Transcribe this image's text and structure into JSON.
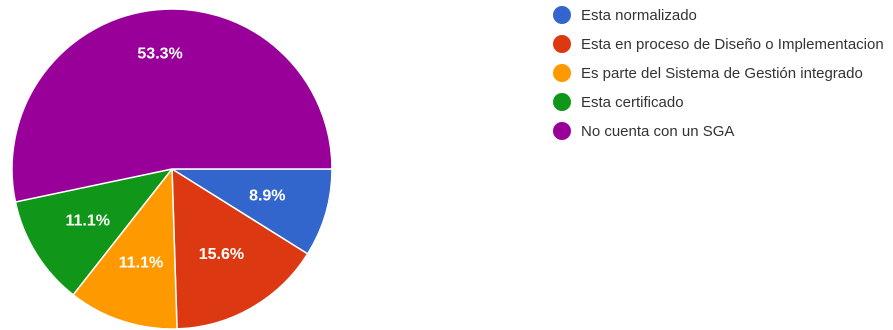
{
  "chart_data": {
    "type": "pie",
    "title": "",
    "series": [
      {
        "name": "Esta normalizado",
        "value": 8.9,
        "label": "8.9%",
        "color": "#3366cc"
      },
      {
        "name": "Esta en proceso de Diseño o Implementacion",
        "value": 15.6,
        "label": "15.6%",
        "color": "#dc3912"
      },
      {
        "name": "Es parte del Sistema de Gestión integrado",
        "value": 11.1,
        "label": "11.1%",
        "color": "#ff9900"
      },
      {
        "name": "Esta certificado",
        "value": 11.1,
        "label": "11.1%",
        "color": "#109618"
      },
      {
        "name": "No cuenta con un SGA",
        "value": 53.3,
        "label": "53.3%",
        "color": "#990099"
      }
    ],
    "start": "right, clockwise",
    "legend_position": "right"
  }
}
